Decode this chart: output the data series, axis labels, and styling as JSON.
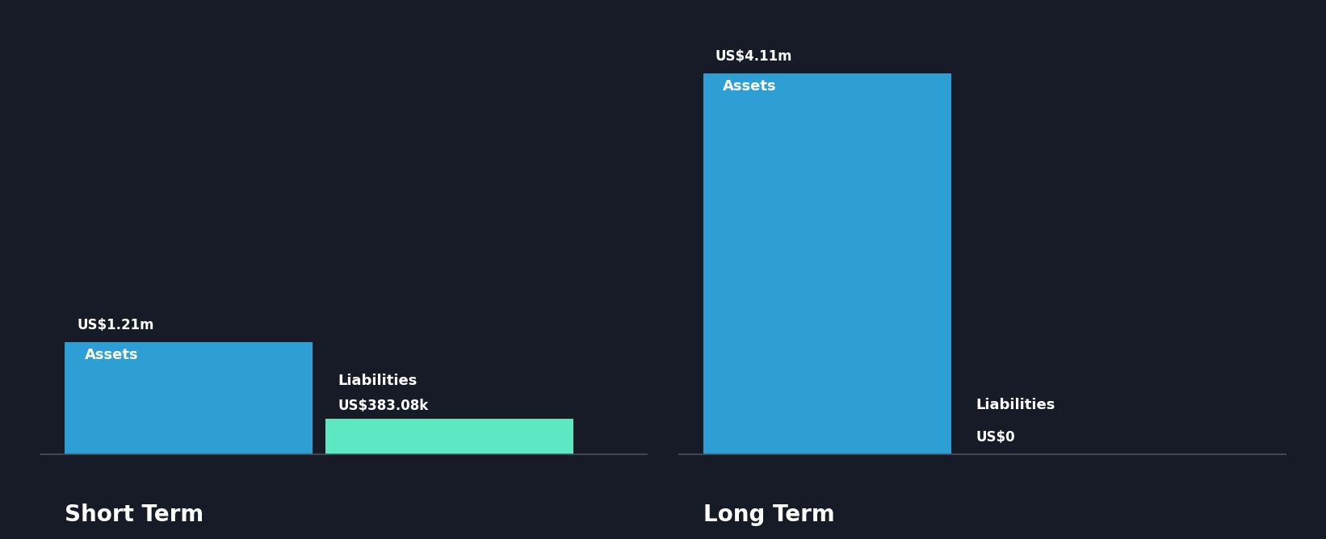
{
  "background_color": "#161b27",
  "short_term": {
    "label": "Short Term",
    "assets_value": 1.21,
    "liabilities_value": 0.38308,
    "assets_label": "Assets",
    "liabilities_label": "Liabilities",
    "assets_value_text": "US$1.21m",
    "liabilities_value_text": "US$383.08k",
    "assets_color": "#2e9fd4",
    "liabilities_color": "#5de8c1"
  },
  "long_term": {
    "label": "Long Term",
    "assets_value": 4.11,
    "liabilities_value": 0,
    "assets_label": "Assets",
    "liabilities_label": "Liabilities",
    "assets_value_text": "US$4.11m",
    "liabilities_value_text": "US$0",
    "assets_color": "#2e9fd4",
    "liabilities_color": "#5de8c1"
  },
  "text_color": "#ffffff",
  "axis_line_color": "#4a4f5d",
  "value_fontsize": 12,
  "group_label_fontsize": 20,
  "inside_label_fontsize": 13
}
